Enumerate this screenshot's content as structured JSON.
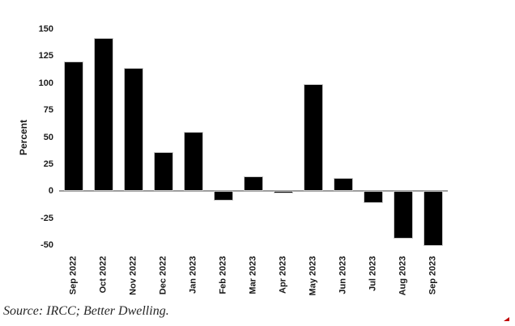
{
  "chart_data": {
    "type": "bar",
    "categories": [
      "Sep 2022",
      "Oct 2022",
      "Nov 2022",
      "Dec 2022",
      "Jan 2023",
      "Feb 2023",
      "Mar 2023",
      "Apr 2023",
      "May 2023",
      "Jun 2023",
      "Jul 2023",
      "Aug 2023",
      "Sep 2023"
    ],
    "values": [
      120,
      142,
      114,
      36,
      55,
      -9,
      14,
      -2,
      99,
      12,
      -11,
      -44,
      -51
    ],
    "title": "",
    "xlabel": "",
    "ylabel": "Percent",
    "ylim": [
      -50,
      150
    ],
    "yticks": [
      150,
      125,
      100,
      75,
      50,
      25,
      0,
      -25,
      -50
    ],
    "grid": false,
    "legend": false,
    "bar_color": "#000000",
    "bar_border_color": "#c8c8c8",
    "zero_line_color": "#9e9e9e",
    "axis_text_color": "#1a1a1a"
  },
  "footer": {
    "source_note": "Source: IRCC; Better Dwelling.",
    "red_mark_color": "#c00000"
  }
}
